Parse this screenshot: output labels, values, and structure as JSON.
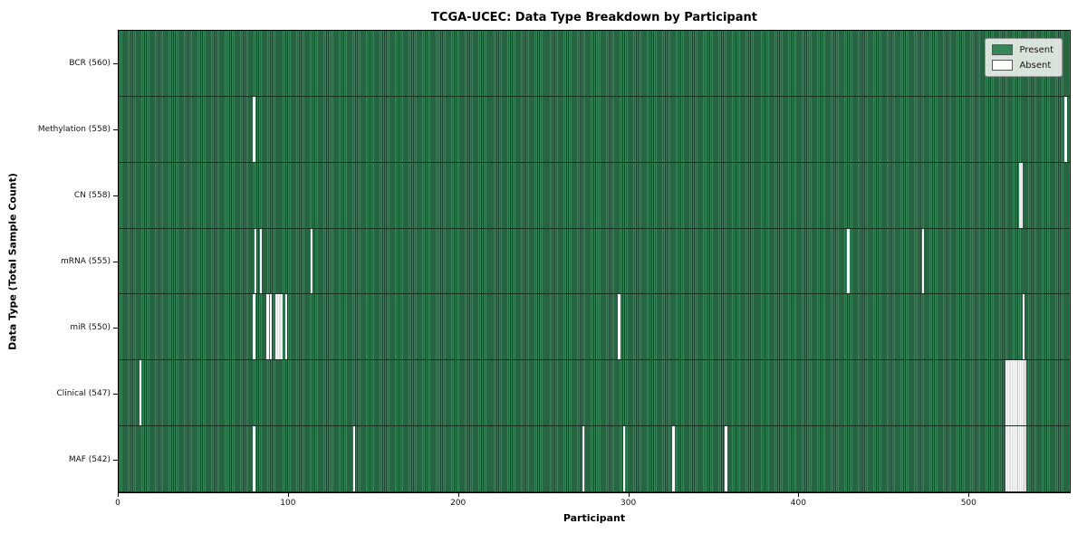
{
  "title": "TCGA-UCEC: Data Type Breakdown by Participant",
  "chart_data": {
    "type": "heatmap",
    "title": "TCGA-UCEC: Data Type Breakdown by Participant",
    "xlabel": "Participant",
    "ylabel": "Data Type (Total Sample Count)",
    "xlim": [
      0,
      560
    ],
    "n_participants": 560,
    "x_ticks": [
      0,
      100,
      200,
      300,
      400,
      500
    ],
    "grid": false,
    "legend_position": "upper right",
    "cell_states": [
      "Present",
      "Absent"
    ],
    "rows": [
      {
        "label": "BCR (560)",
        "data_type": "BCR",
        "present_count": 560,
        "absent_participants": []
      },
      {
        "label": "Methylation (558)",
        "data_type": "Methylation",
        "present_count": 558,
        "absent_participants": [
          79,
          557
        ]
      },
      {
        "label": "CN (558)",
        "data_type": "CN",
        "present_count": 558,
        "absent_participants": [
          530,
          531
        ]
      },
      {
        "label": "mRNA (555)",
        "data_type": "mRNA",
        "present_count": 555,
        "absent_participants": [
          80,
          83,
          113,
          429,
          473
        ]
      },
      {
        "label": "miR (550)",
        "data_type": "miR",
        "present_count": 550,
        "absent_participants": [
          79,
          87,
          89,
          92,
          93,
          94,
          95,
          98,
          294,
          532
        ]
      },
      {
        "label": "Clinical (547)",
        "data_type": "Clinical",
        "present_count": 547,
        "absent_participants": [
          12,
          522,
          523,
          524,
          525,
          526,
          527,
          528,
          529,
          530,
          531,
          532,
          533
        ]
      },
      {
        "label": "MAF (542)",
        "data_type": "MAF",
        "present_count": 542,
        "absent_participants": [
          79,
          138,
          273,
          297,
          326,
          357,
          522,
          523,
          524,
          525,
          526,
          527,
          528,
          529,
          530,
          531,
          532,
          533
        ]
      }
    ]
  },
  "legend": {
    "entries": [
      {
        "label": "Present",
        "color": "#36865a"
      },
      {
        "label": "Absent",
        "color": "#ffffff"
      }
    ]
  },
  "colors": {
    "present_fill": "#36865a",
    "cell_edge": "#17422b",
    "absent_fill": "#ffffff",
    "absent_edge": "#bdbdbd",
    "row_separator": "#16301f",
    "plot_border": "#000000"
  }
}
